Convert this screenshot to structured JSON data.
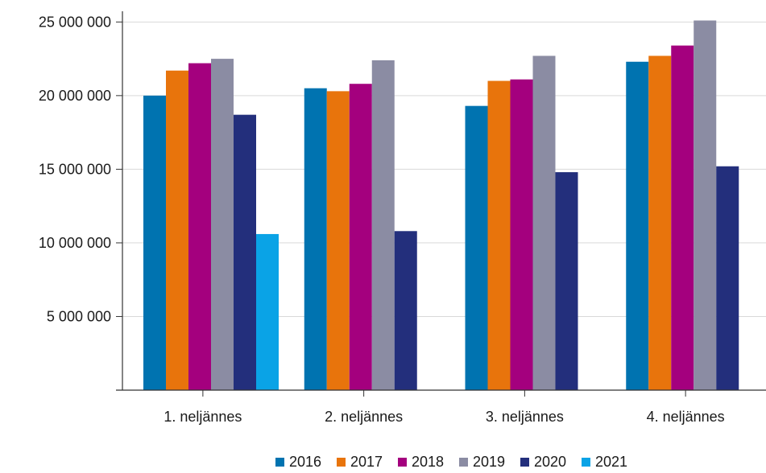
{
  "chart_data": {
    "type": "bar",
    "categories": [
      "1. neljännes",
      "2. neljännes",
      "3. neljännes",
      "4. neljännes"
    ],
    "series": [
      {
        "name": "2016",
        "color": "#0073b0",
        "values": [
          20000000,
          20500000,
          19300000,
          22300000
        ]
      },
      {
        "name": "2017",
        "color": "#e8740c",
        "values": [
          21700000,
          20300000,
          21000000,
          22700000
        ]
      },
      {
        "name": "2018",
        "color": "#a4007e",
        "values": [
          22200000,
          20800000,
          21100000,
          23400000
        ]
      },
      {
        "name": "2019",
        "color": "#8b8ca3",
        "values": [
          22500000,
          22400000,
          22700000,
          25100000
        ]
      },
      {
        "name": "2020",
        "color": "#232f7c",
        "values": [
          18700000,
          10800000,
          14800000,
          15200000
        ]
      },
      {
        "name": "2021",
        "color": "#0aa3e6",
        "values": [
          10600000,
          null,
          null,
          null
        ]
      }
    ],
    "yticks": [
      5000000,
      10000000,
      15000000,
      20000000,
      25000000
    ],
    "ytick_labels": [
      "5 000 000",
      "10 000 000",
      "15 000 000",
      "20 000 000",
      "25 000 000"
    ],
    "ylim": [
      0,
      25400000
    ],
    "grid": true,
    "legend_position": "bottom-center",
    "title": "",
    "xlabel": "",
    "ylabel": ""
  }
}
